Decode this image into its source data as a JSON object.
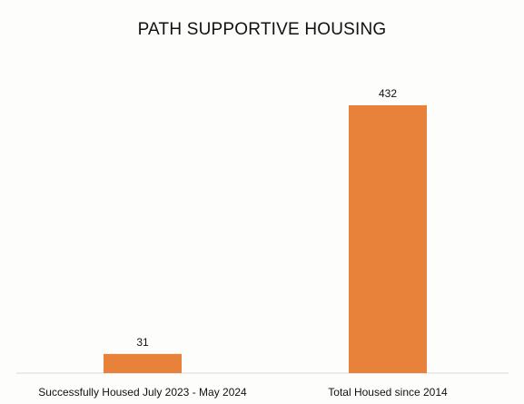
{
  "chart_data": {
    "type": "bar",
    "title": "PATH SUPPORTIVE HOUSING",
    "categories": [
      "Successfully Housed July 2023 - May 2024",
      "Total Housed since 2014"
    ],
    "values": [
      31,
      432
    ],
    "data_labels": [
      "31",
      "432"
    ],
    "bar_color": "#e8823a",
    "grid": false,
    "legend": "none",
    "ylim": [
      0,
      500
    ]
  }
}
